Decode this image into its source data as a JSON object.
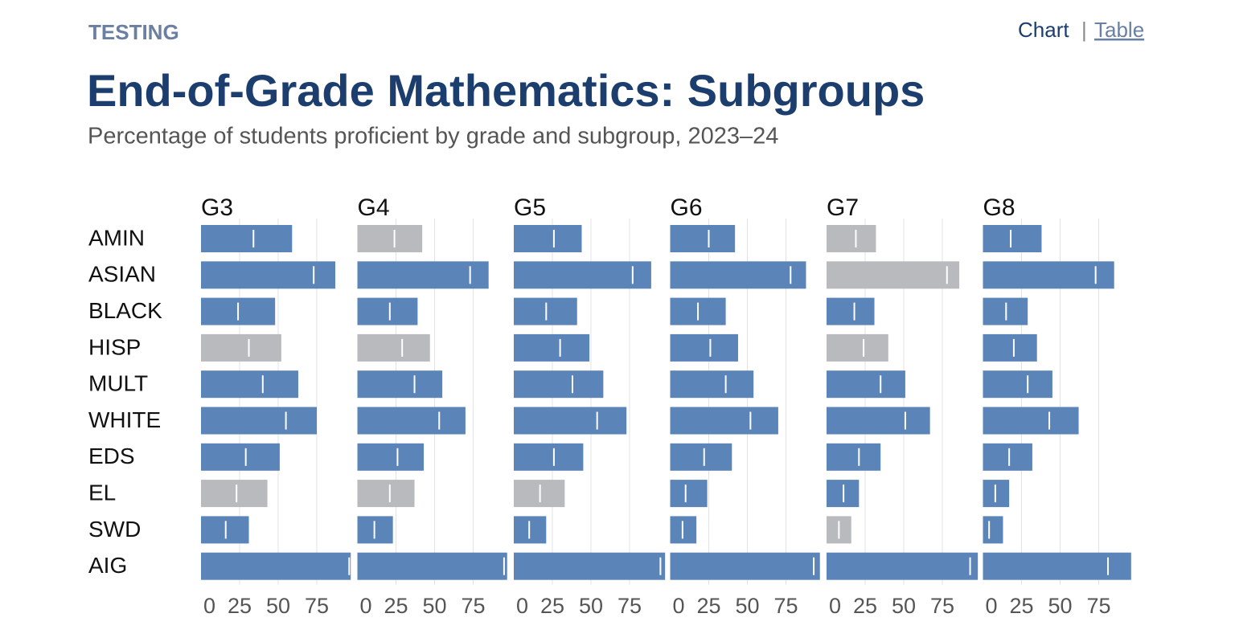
{
  "header": {
    "section": "TESTING",
    "nav": [
      "Chart",
      "|",
      "Table"
    ]
  },
  "chart_data": {
    "type": "bar",
    "orientation": "horizontal",
    "title": "End-of-Grade Mathematics: Subgroups",
    "subtitle": "Percentage of students proficient by grade and subgroup, 2023–24",
    "categories": [
      "AMIN",
      "ASIAN",
      "BLACK",
      "HISP",
      "MULT",
      "WHITE",
      "EDS",
      "EL",
      "SWD",
      "AIG"
    ],
    "xlim": [
      0,
      100
    ],
    "xticks": [
      0,
      25,
      50,
      75
    ],
    "grid": true,
    "bar_color": "#5b84b8",
    "muted_color": "#b8babd",
    "marker_color": "#ffffff",
    "panels": [
      {
        "title": "G3",
        "values": [
          59,
          87,
          48,
          52,
          63,
          75,
          51,
          43,
          31,
          97
        ],
        "markers": [
          34,
          73,
          24,
          31,
          40,
          55,
          29,
          23,
          16,
          96
        ],
        "muted": [
          false,
          false,
          false,
          true,
          false,
          false,
          false,
          true,
          false,
          false
        ]
      },
      {
        "title": "G4",
        "values": [
          42,
          85,
          39,
          47,
          55,
          70,
          43,
          37,
          23,
          97
        ],
        "markers": [
          24,
          73,
          21,
          29,
          37,
          53,
          26,
          21,
          11,
          95
        ],
        "muted": [
          true,
          false,
          false,
          true,
          false,
          false,
          false,
          true,
          false,
          false
        ]
      },
      {
        "title": "G5",
        "values": [
          44,
          89,
          41,
          49,
          58,
          73,
          45,
          33,
          21,
          98
        ],
        "markers": [
          26,
          77,
          21,
          30,
          38,
          54,
          26,
          17,
          10,
          95
        ],
        "muted": [
          false,
          false,
          false,
          false,
          false,
          false,
          false,
          true,
          false,
          false
        ]
      },
      {
        "title": "G6",
        "values": [
          42,
          88,
          36,
          44,
          54,
          70,
          40,
          24,
          17,
          97
        ],
        "markers": [
          25,
          78,
          18,
          26,
          36,
          52,
          22,
          10,
          8,
          93
        ],
        "muted": [
          false,
          false,
          false,
          false,
          false,
          false,
          false,
          false,
          false,
          false
        ]
      },
      {
        "title": "G7",
        "values": [
          32,
          86,
          31,
          40,
          51,
          67,
          35,
          21,
          16,
          98
        ],
        "markers": [
          19,
          78,
          18,
          24,
          35,
          51,
          21,
          11,
          8,
          93
        ],
        "muted": [
          true,
          true,
          false,
          true,
          false,
          false,
          false,
          false,
          true,
          false
        ]
      },
      {
        "title": "G8",
        "values": [
          38,
          85,
          29,
          35,
          45,
          62,
          32,
          17,
          13,
          96
        ],
        "markers": [
          18,
          73,
          15,
          20,
          29,
          43,
          17,
          8,
          4,
          81
        ],
        "muted": [
          false,
          false,
          false,
          false,
          false,
          false,
          false,
          false,
          false,
          false
        ]
      }
    ]
  }
}
